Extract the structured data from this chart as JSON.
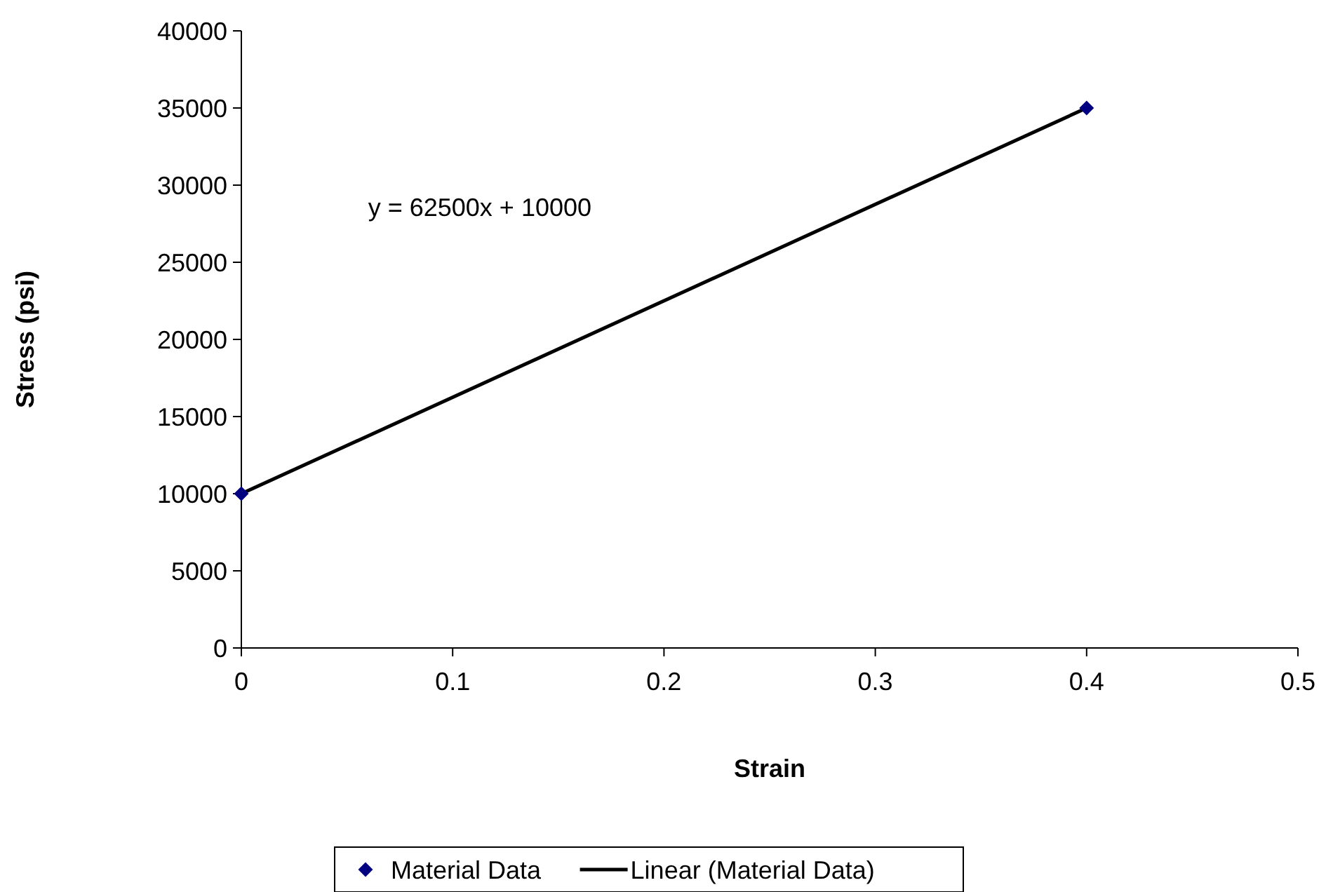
{
  "chart_data": {
    "type": "scatter",
    "xlabel": "Strain",
    "ylabel": "Stress (psi)",
    "xlim": [
      0,
      0.5
    ],
    "xticks": [
      0,
      0.1,
      0.2,
      0.3,
      0.4,
      0.5
    ],
    "ylim": [
      0,
      40000
    ],
    "yticks": [
      0,
      5000,
      10000,
      15000,
      20000,
      25000,
      30000,
      35000,
      40000
    ],
    "grid": false,
    "legend": "bottom",
    "x": [
      0,
      0.4
    ],
    "series": [
      {
        "name": "Material Data",
        "color": "#000080",
        "marker": "diamond",
        "values": [
          10000,
          35000
        ]
      },
      {
        "name": "Linear (Material Data)",
        "type": "line",
        "color": "#000000",
        "values": [
          10000,
          35000
        ],
        "line_style": "solid"
      }
    ],
    "annotations": [
      "y = 62500x + 10000"
    ]
  }
}
